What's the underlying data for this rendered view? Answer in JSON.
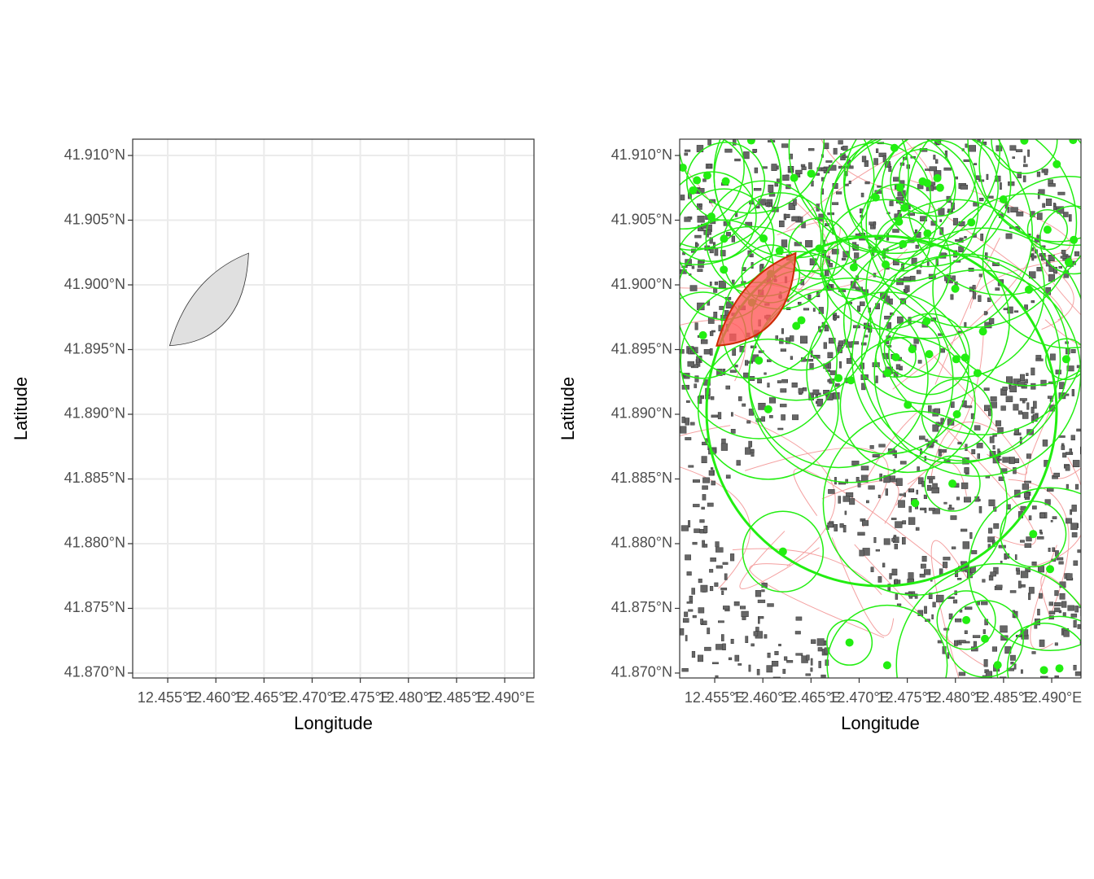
{
  "chart_data": [
    {
      "type": "map",
      "xlabel": "Longitude",
      "ylabel": "Latitude",
      "xlim": [
        12.45136,
        12.49304
      ],
      "ylim": [
        41.86962,
        41.91126
      ],
      "xticks": [
        {
          "value": 12.455,
          "label": "12.455°E"
        },
        {
          "value": 12.46,
          "label": "12.460°E"
        },
        {
          "value": 12.465,
          "label": "12.465°E"
        },
        {
          "value": 12.47,
          "label": "12.470°E"
        },
        {
          "value": 12.475,
          "label": "12.475°E"
        },
        {
          "value": 12.48,
          "label": "12.480°E"
        },
        {
          "value": 12.485,
          "label": "12.485°E"
        },
        {
          "value": 12.49,
          "label": "12.490°E"
        }
      ],
      "yticks": [
        {
          "value": 41.87,
          "label": "41.870°N"
        },
        {
          "value": 41.875,
          "label": "41.875°N"
        },
        {
          "value": 41.88,
          "label": "41.880°N"
        },
        {
          "value": 41.885,
          "label": "41.885°N"
        },
        {
          "value": 41.89,
          "label": "41.890°N"
        },
        {
          "value": 41.895,
          "label": "41.895°N"
        },
        {
          "value": 41.9,
          "label": "41.900°N"
        },
        {
          "value": 41.905,
          "label": "41.905°N"
        },
        {
          "value": 41.91,
          "label": "41.910°N"
        }
      ],
      "grid": true,
      "basemap": false,
      "polygon": {
        "x": [
          12.4552,
          12.4634
        ],
        "y": [
          41.8953,
          41.90245
        ],
        "color": "#e0e0e0",
        "stroke": "#333333"
      }
    },
    {
      "type": "map",
      "xlabel": "Longitude",
      "ylabel": "Latitude",
      "xlim": [
        12.45136,
        12.49304
      ],
      "ylim": [
        41.86962,
        41.91126
      ],
      "xticks": [
        {
          "value": 12.455,
          "label": "12.455°E"
        },
        {
          "value": 12.46,
          "label": "12.460°E"
        },
        {
          "value": 12.465,
          "label": "12.465°E"
        },
        {
          "value": 12.47,
          "label": "12.470°E"
        },
        {
          "value": 12.475,
          "label": "12.475°E"
        },
        {
          "value": 12.48,
          "label": "12.480°E"
        },
        {
          "value": 12.485,
          "label": "12.485°E"
        },
        {
          "value": 12.49,
          "label": "12.490°E"
        }
      ],
      "yticks": [
        {
          "value": 41.87,
          "label": "41.870°N"
        },
        {
          "value": 41.875,
          "label": "41.875°N"
        },
        {
          "value": 41.88,
          "label": "41.880°N"
        },
        {
          "value": 41.885,
          "label": "41.885°N"
        },
        {
          "value": 41.89,
          "label": "41.890°N"
        },
        {
          "value": 41.895,
          "label": "41.895°N"
        },
        {
          "value": 41.9,
          "label": "41.900°N"
        },
        {
          "value": 41.905,
          "label": "41.905°N"
        },
        {
          "value": 41.91,
          "label": "41.910°N"
        }
      ],
      "grid": false,
      "basemap": true,
      "polygon": {
        "x": [
          12.4552,
          12.4634
        ],
        "y": [
          41.8953,
          41.90245
        ],
        "color": "#ff5a5a",
        "stroke": "#cc2a00"
      }
    }
  ]
}
